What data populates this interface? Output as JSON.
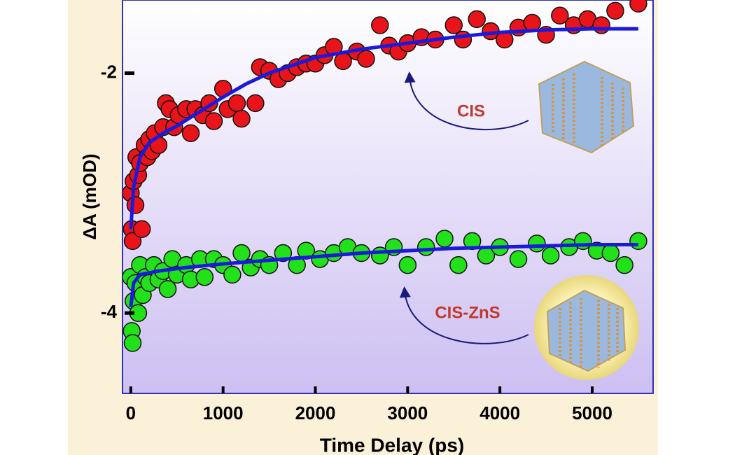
{
  "chart_data": {
    "type": "scatter",
    "x_label": "Time Delay (ps)",
    "y_label": "ΔA (mOD)",
    "xlim": [
      -90,
      5660
    ],
    "ylim": [
      -4.67,
      -1.39
    ],
    "xticks": [
      0,
      1000,
      2000,
      3000,
      4000,
      5000
    ],
    "yticks": [
      -2,
      -4
    ],
    "series": [
      {
        "color": "#e8141a",
        "x": [
          0,
          10,
          20,
          30,
          50,
          60,
          80,
          100,
          120,
          150,
          180,
          200,
          230,
          260,
          300,
          350,
          380,
          420,
          470,
          520,
          600,
          650,
          700,
          780,
          850,
          900,
          1000,
          1050,
          1150,
          1200,
          1350,
          1400,
          1500,
          1600,
          1700,
          1800,
          1900,
          2000,
          2100,
          2200,
          2300,
          2450,
          2550,
          2700,
          2800,
          2900,
          3000,
          3150,
          3300,
          3500,
          3600,
          3750,
          3900,
          4050,
          4200,
          4350,
          4500,
          4650,
          4800,
          4950,
          5100,
          5250,
          5500
        ],
        "values": [
          -3.0,
          -3.3,
          -3.4,
          -2.9,
          -3.1,
          -2.7,
          -2.85,
          -2.75,
          -3.3,
          -2.6,
          -2.7,
          -2.55,
          -2.65,
          -2.5,
          -2.6,
          -2.45,
          -2.25,
          -2.3,
          -2.45,
          -2.35,
          -2.3,
          -2.5,
          -2.3,
          -2.35,
          -2.25,
          -2.4,
          -2.13,
          -2.3,
          -2.25,
          -2.38,
          -2.25,
          -1.95,
          -1.98,
          -2.05,
          -2.0,
          -1.95,
          -1.92,
          -1.92,
          -1.85,
          -1.78,
          -1.9,
          -1.82,
          -1.88,
          -1.6,
          -1.77,
          -1.82,
          -1.75,
          -1.7,
          -1.72,
          -1.6,
          -1.72,
          -1.55,
          -1.65,
          -1.72,
          -1.62,
          -1.58,
          -1.68,
          -1.52,
          -1.6,
          -1.55,
          -1.6,
          -1.48,
          -1.42
        ]
      },
      {
        "color": "#22e01a",
        "x": [
          0,
          10,
          20,
          30,
          50,
          80,
          100,
          130,
          160,
          200,
          250,
          300,
          350,
          400,
          450,
          500,
          600,
          650,
          750,
          800,
          900,
          1000,
          1100,
          1200,
          1300,
          1400,
          1500,
          1650,
          1800,
          1900,
          2050,
          2200,
          2350,
          2500,
          2700,
          2850,
          3000,
          3200,
          3400,
          3550,
          3700,
          3850,
          4000,
          4200,
          4400,
          4550,
          4750,
          4900,
          5050,
          5200,
          5350,
          5500
        ],
        "values": [
          -3.7,
          -4.15,
          -4.25,
          -3.9,
          -3.75,
          -4.0,
          -3.6,
          -3.85,
          -3.7,
          -3.75,
          -3.6,
          -3.72,
          -3.65,
          -3.8,
          -3.55,
          -3.68,
          -3.6,
          -3.72,
          -3.55,
          -3.7,
          -3.55,
          -3.6,
          -3.68,
          -3.5,
          -3.62,
          -3.55,
          -3.6,
          -3.5,
          -3.6,
          -3.48,
          -3.55,
          -3.5,
          -3.45,
          -3.5,
          -3.52,
          -3.45,
          -3.6,
          -3.45,
          -3.38,
          -3.6,
          -3.4,
          -3.52,
          -3.45,
          -3.55,
          -3.42,
          -3.52,
          -3.45,
          -3.4,
          -3.48,
          -3.5,
          -3.6,
          -3.4
        ]
      }
    ],
    "fit_lines": [
      {
        "color": "#1a1adc",
        "x": [
          0,
          30,
          100,
          200,
          350,
          500,
          750,
          1000,
          1250,
          1500,
          2000,
          2500,
          3000,
          3500,
          4000,
          4500,
          5000,
          5500
        ],
        "values": [
          -3.3,
          -2.95,
          -2.7,
          -2.58,
          -2.5,
          -2.44,
          -2.32,
          -2.2,
          -2.09,
          -2.0,
          -1.87,
          -1.8,
          -1.75,
          -1.7,
          -1.66,
          -1.64,
          -1.63,
          -1.63
        ]
      },
      {
        "color": "#1a1adc",
        "x": [
          0,
          30,
          100,
          300,
          600,
          1000,
          1500,
          2000,
          2500,
          3000,
          3500,
          4000,
          4500,
          5000,
          5500
        ],
        "values": [
          -3.95,
          -3.75,
          -3.68,
          -3.65,
          -3.62,
          -3.59,
          -3.56,
          -3.53,
          -3.5,
          -3.48,
          -3.46,
          -3.45,
          -3.44,
          -3.43,
          -3.43
        ]
      }
    ],
    "annotations": [
      "CIS",
      "CIS-ZnS"
    ],
    "marker_radius": 12,
    "grid": false
  }
}
